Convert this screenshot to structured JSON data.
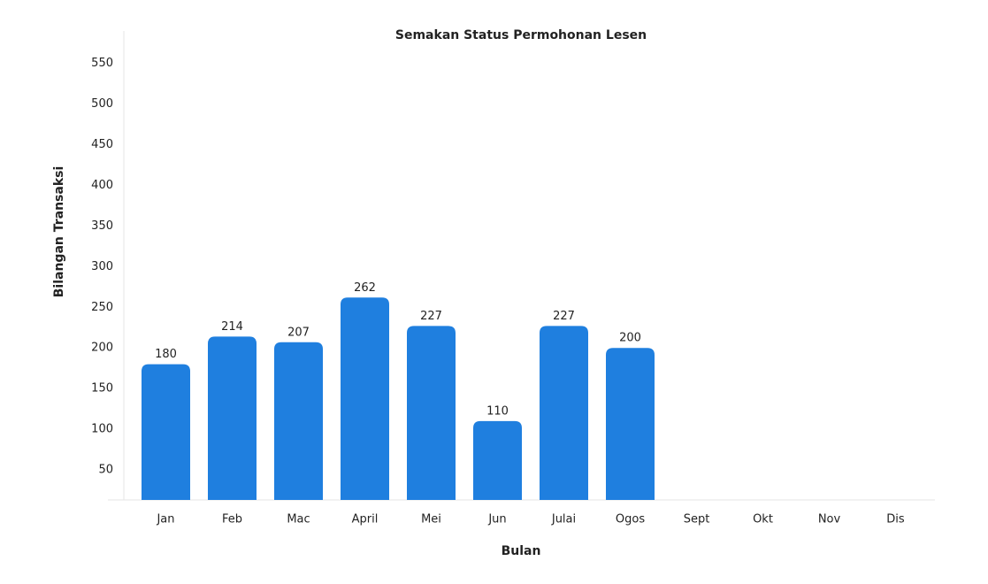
{
  "chart_data": {
    "type": "bar",
    "title": "Semakan Status Permohonan Lesen",
    "x_label": "Bulan",
    "y_label": "Bilangan Transaksi",
    "categories": [
      "Jan",
      "Feb",
      "Mac",
      "April",
      "Mei",
      "Jun",
      "Julai",
      "Ogos",
      "Sept",
      "Okt",
      "Nov",
      "Dis"
    ],
    "values": [
      180,
      214,
      207,
      262,
      227,
      110,
      227,
      200,
      null,
      null,
      null,
      null
    ],
    "color": "#1f7fdf",
    "ylim": [
      13,
      590
    ],
    "yticks": [
      50,
      100,
      150,
      200,
      250,
      300,
      350,
      400,
      450,
      500,
      550
    ],
    "grid": false
  }
}
